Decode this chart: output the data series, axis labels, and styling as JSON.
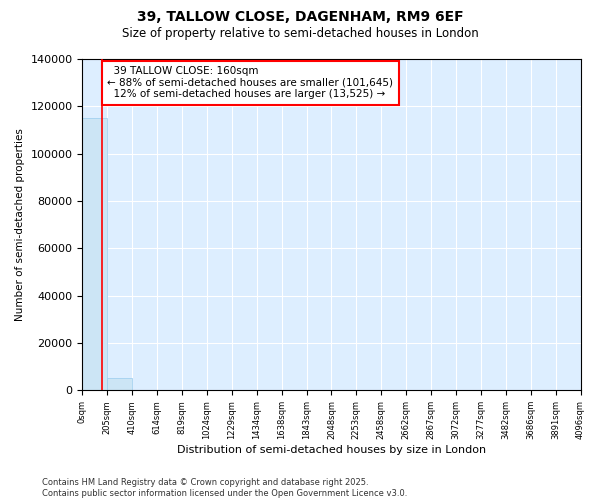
{
  "title": "39, TALLOW CLOSE, DAGENHAM, RM9 6EF",
  "subtitle": "Size of property relative to semi-detached houses in London",
  "xlabel": "Distribution of semi-detached houses by size in London",
  "ylabel": "Number of semi-detached properties",
  "footer": "Contains HM Land Registry data © Crown copyright and database right 2025.\nContains public sector information licensed under the Open Government Licence v3.0.",
  "property_size": 160,
  "property_label": "39 TALLOW CLOSE: 160sqm",
  "pct_smaller": 88,
  "count_smaller": 101645,
  "pct_larger": 12,
  "count_larger": 13525,
  "bar_color": "#cce5f5",
  "bar_edge_color": "#99ccee",
  "redline_color": "red",
  "annotation_box_color": "red",
  "bin_edges": [
    0,
    205,
    410,
    614,
    819,
    1024,
    1229,
    1434,
    1638,
    1843,
    2048,
    2253,
    2458,
    2662,
    2867,
    3072,
    3277,
    3482,
    3686,
    3891,
    4096
  ],
  "bin_counts": [
    115170,
    5200,
    350,
    90,
    40,
    25,
    15,
    10,
    8,
    6,
    5,
    4,
    3,
    2,
    2,
    1,
    1,
    1,
    1,
    1
  ],
  "xtick_labels": [
    "0sqm",
    "205sqm",
    "410sqm",
    "614sqm",
    "819sqm",
    "1024sqm",
    "1229sqm",
    "1434sqm",
    "1638sqm",
    "1843sqm",
    "2048sqm",
    "2253sqm",
    "2458sqm",
    "2662sqm",
    "2867sqm",
    "3072sqm",
    "3277sqm",
    "3482sqm",
    "3686sqm",
    "3891sqm",
    "4096sqm"
  ],
  "ylim": [
    0,
    140000
  ],
  "yticks": [
    0,
    20000,
    40000,
    60000,
    80000,
    100000,
    120000,
    140000
  ],
  "ytick_labels": [
    "0",
    "20000",
    "40000",
    "60000",
    "80000",
    "100000",
    "120000",
    "140000"
  ],
  "fig_background": "#ffffff",
  "plot_background": "#ddeeff"
}
